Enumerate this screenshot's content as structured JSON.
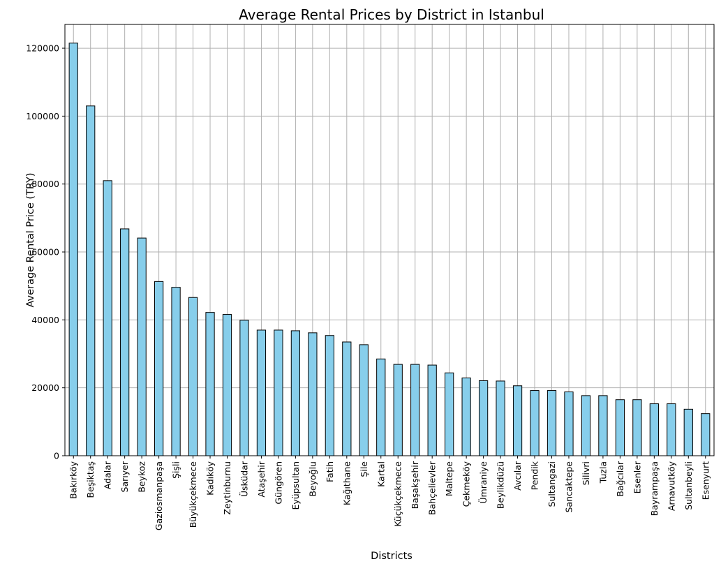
{
  "chart_data": {
    "type": "bar",
    "title": "Average Rental Prices by District in Istanbul",
    "xlabel": "Districts",
    "ylabel": "Average Rental Price (TRY)",
    "ylim": [
      0,
      127000
    ],
    "yticks": [
      0,
      20000,
      40000,
      60000,
      80000,
      100000,
      120000
    ],
    "ytick_labels": [
      "0",
      "20000",
      "40000",
      "60000",
      "80000",
      "100000",
      "120000"
    ],
    "grid": true,
    "bar_color": "#87CEEB",
    "edge_color": "#000000",
    "categories": [
      "Bakırköy",
      "Beşiktaş",
      "Adalar",
      "Sarıyer",
      "Beykoz",
      "Gaziosmanpaşa",
      "Şişli",
      "Büyükçekmece",
      "Kadıköy",
      "Zeytinburnu",
      "Üsküdar",
      "Ataşehir",
      "Güngören",
      "Eyüpsultan",
      "Beyoğlu",
      "Fatih",
      "Kağıthane",
      "Şile",
      "Kartal",
      "Küçükçekmece",
      "Başakşehir",
      "Bahçelievler",
      "Maltepe",
      "Çekmeköy",
      "Ümraniye",
      "Beylikdüzü",
      "Avcılar",
      "Pendik",
      "Sultangazi",
      "Sancaktepe",
      "Silivri",
      "Tuzla",
      "Bağcılar",
      "Esenler",
      "Bayrampaşa",
      "Arnavutköy",
      "Sultanbeyli",
      "Esenyurt"
    ],
    "values": [
      121500,
      103000,
      81000,
      66800,
      64100,
      51300,
      49600,
      46600,
      42200,
      41600,
      39900,
      37000,
      37000,
      36800,
      36200,
      35400,
      33500,
      32700,
      28500,
      26900,
      26900,
      26700,
      24400,
      22900,
      22100,
      22000,
      20600,
      19200,
      19200,
      18800,
      17700,
      17700,
      16500,
      16500,
      15300,
      15300,
      13700,
      12400
    ]
  }
}
